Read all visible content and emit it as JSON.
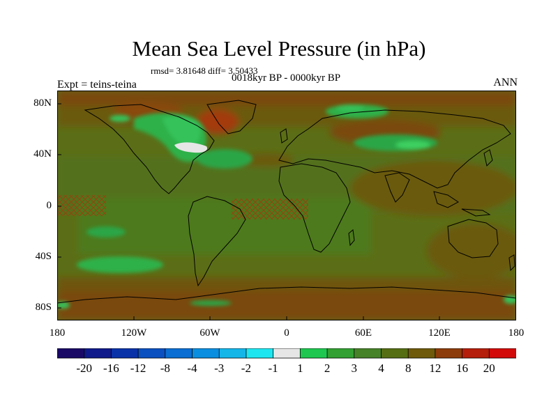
{
  "title": "Mean Sea Level Pressure (in hPa)",
  "stats_line": "rmsd= 3.81648 diff= 3.50433",
  "subtitle": "0018kyr BP - 0000kyr BP",
  "experiment": "Expt = teins-teina",
  "season": "ANN",
  "latitude_labels": [
    "80N",
    "40N",
    "0",
    "40S",
    "80S"
  ],
  "longitude_labels": [
    "180",
    "120W",
    "60W",
    "0",
    "60E",
    "120E",
    "180"
  ],
  "colorbar": {
    "labels": [
      "-20",
      "-16",
      "-12",
      "-8",
      "-4",
      "-3",
      "-2",
      "-1",
      "1",
      "2",
      "3",
      "4",
      "8",
      "12",
      "16",
      "20"
    ],
    "colors": [
      "#1a0a66",
      "#101a8a",
      "#0a32a8",
      "#0a50c0",
      "#0a6ed2",
      "#0a8ee0",
      "#14b6e8",
      "#1ee6f0",
      "#e6e6e6",
      "#1ec850",
      "#32a032",
      "#468228",
      "#556e14",
      "#6e5a0a",
      "#8c3c0a",
      "#b41e0a",
      "#d20a0a"
    ]
  },
  "colors": {
    "ocean_base": "#556e14",
    "land_outline": "#000000"
  }
}
